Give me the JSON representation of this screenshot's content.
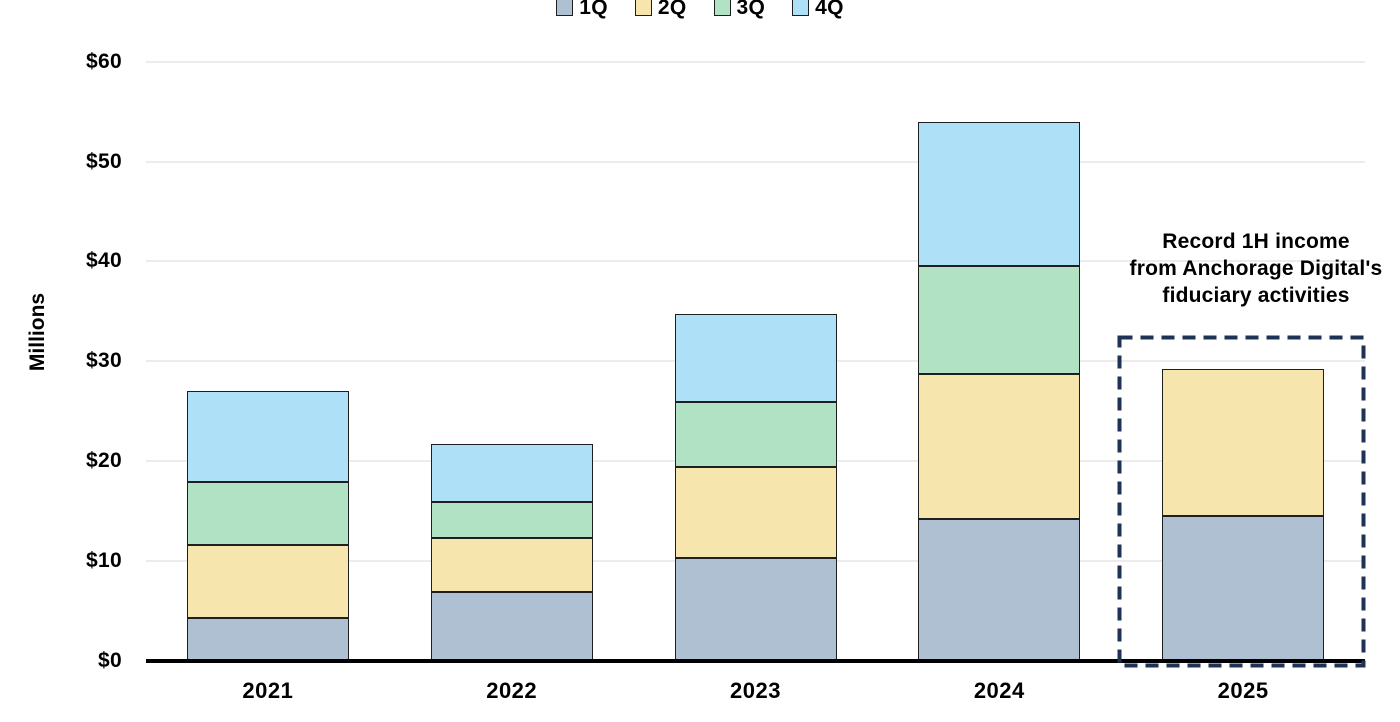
{
  "y_axis": {
    "title": "Millions",
    "tick_labels": [
      "$0",
      "$10",
      "$20",
      "$30",
      "$40",
      "$50",
      "$60"
    ],
    "tick_values": [
      0,
      10,
      20,
      30,
      40,
      50,
      60
    ]
  },
  "annotation": {
    "text": "Record 1H income\nfrom Anchorage Digital's\nfiduciary activities",
    "box_color": "#1e3354"
  },
  "chart_data": {
    "type": "bar",
    "stacked": true,
    "categories": [
      "2021",
      "2022",
      "2023",
      "2024",
      "2025"
    ],
    "series": [
      {
        "name": "1Q",
        "color": "#aec0d1",
        "values": [
          4.3,
          6.9,
          10.3,
          14.2,
          14.5
        ]
      },
      {
        "name": "2Q",
        "color": "#f6e5ac",
        "values": [
          7.3,
          5.4,
          9.1,
          14.5,
          14.7
        ]
      },
      {
        "name": "3Q",
        "color": "#b2e2c4",
        "values": [
          6.3,
          3.6,
          6.5,
          10.8,
          0
        ]
      },
      {
        "name": "4Q",
        "color": "#aee1f7",
        "values": [
          9.1,
          5.8,
          8.8,
          14.5,
          0
        ]
      }
    ],
    "totals": [
      27.0,
      21.7,
      34.7,
      54.0,
      29.2
    ],
    "title": "",
    "xlabel": "",
    "ylabel": "Millions",
    "ylim": [
      0,
      60
    ],
    "ytick_step": 10,
    "ytick_prefix": "$",
    "grid": true,
    "legend_position": "top-center",
    "annotation_category": "2025",
    "annotation_span": "1Q-2Q only reported for 2025 (first half)"
  }
}
